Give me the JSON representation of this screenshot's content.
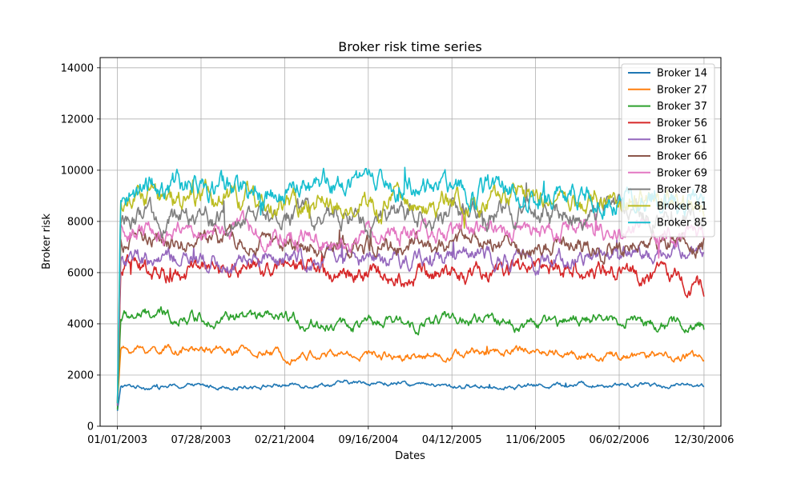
{
  "chart_data": {
    "type": "line",
    "title": "Broker risk time series",
    "xlabel": "Dates",
    "ylabel": "Broker risk",
    "x_ticks": [
      "01/01/2003",
      "07/28/2003",
      "02/21/2004",
      "09/16/2004",
      "04/12/2005",
      "11/06/2005",
      "06/02/2006",
      "12/30/2006"
    ],
    "y_ticks": [
      "0",
      "2000",
      "4000",
      "6000",
      "8000",
      "10000",
      "12000",
      "14000"
    ],
    "xlim": [
      "2002-11-19",
      "2007-02-10"
    ],
    "ylim": [
      0,
      14400
    ],
    "grid": true,
    "legend_position": "top-right",
    "x_dates": [
      "2003-01-01",
      "2003-07-28",
      "2004-02-21",
      "2004-09-16",
      "2005-04-12",
      "2005-11-06",
      "2006-06-02",
      "2006-12-30"
    ],
    "series": [
      {
        "name": "Broker 14",
        "color": "#1f77b4",
        "values": [
          600,
          1550,
          1600,
          1700,
          1550,
          1600,
          1650,
          1600
        ]
      },
      {
        "name": "Broker 27",
        "color": "#ff7f0e",
        "values": [
          900,
          3000,
          2800,
          2800,
          2800,
          3000,
          2700,
          2700
        ]
      },
      {
        "name": "Broker 37",
        "color": "#2ca02c",
        "values": [
          650,
          4300,
          4100,
          3950,
          4150,
          4000,
          4200,
          3800
        ]
      },
      {
        "name": "Broker 56",
        "color": "#d62728",
        "values": [
          800,
          6000,
          6200,
          5900,
          6000,
          6100,
          6200,
          5500
        ]
      },
      {
        "name": "Broker 61",
        "color": "#9467bd",
        "values": [
          800,
          6500,
          6600,
          6400,
          6600,
          6500,
          6700,
          6800
        ]
      },
      {
        "name": "Broker 66",
        "color": "#8c564b",
        "values": [
          900,
          7200,
          7100,
          7000,
          7200,
          7000,
          7000,
          7300
        ]
      },
      {
        "name": "Broker 69",
        "color": "#e377c2",
        "values": [
          900,
          7600,
          7500,
          7400,
          7600,
          7500,
          7600,
          7500
        ]
      },
      {
        "name": "Broker 78",
        "color": "#7f7f7f",
        "values": [
          900,
          8100,
          8200,
          8100,
          8300,
          8400,
          8300,
          8200
        ]
      },
      {
        "name": "Broker 81",
        "color": "#bcbd22",
        "values": [
          900,
          8800,
          8700,
          8800,
          8800,
          8900,
          8800,
          8600
        ]
      },
      {
        "name": "Broker 85",
        "color": "#17becf",
        "values": [
          900,
          9300,
          9200,
          9300,
          9300,
          9200,
          9000,
          8900
        ]
      }
    ]
  }
}
